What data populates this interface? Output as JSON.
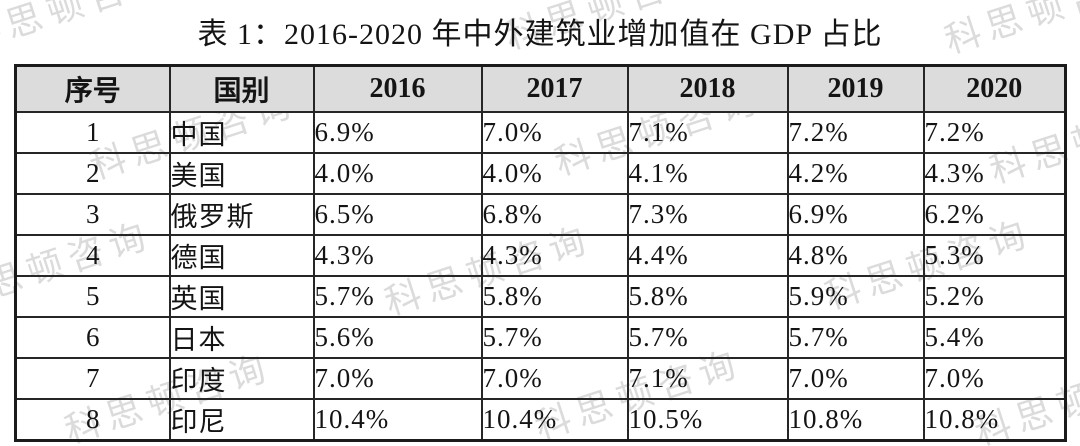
{
  "title": "表 1：2016-2020 年中外建筑业增加值在 GDP 占比",
  "watermark": {
    "text": "科思顿咨询"
  },
  "colors": {
    "background": "#ffffff",
    "header_bg": "#dcdcdc",
    "border": "#262626",
    "text": "#141414",
    "watermark": "#bfbfbf"
  },
  "table": {
    "columns": [
      "序号",
      "国别",
      "2016",
      "2017",
      "2018",
      "2019",
      "2020"
    ],
    "rows": [
      {
        "index": "1",
        "country": "中国",
        "values": [
          "6.9%",
          "7.0%",
          "7.1%",
          "7.2%",
          "7.2%"
        ]
      },
      {
        "index": "2",
        "country": "美国",
        "values": [
          "4.0%",
          "4.0%",
          "4.1%",
          "4.2%",
          "4.3%"
        ]
      },
      {
        "index": "3",
        "country": "俄罗斯",
        "values": [
          "6.5%",
          "6.8%",
          "7.3%",
          "6.9%",
          "6.2%"
        ]
      },
      {
        "index": "4",
        "country": "德国",
        "values": [
          "4.3%",
          "4.3%",
          "4.4%",
          "4.8%",
          "5.3%"
        ]
      },
      {
        "index": "5",
        "country": "英国",
        "values": [
          "5.7%",
          "5.8%",
          "5.8%",
          "5.9%",
          "5.2%"
        ]
      },
      {
        "index": "6",
        "country": "日本",
        "values": [
          "5.6%",
          "5.7%",
          "5.7%",
          "5.7%",
          "5.4%"
        ]
      },
      {
        "index": "7",
        "country": "印度",
        "values": [
          "7.0%",
          "7.0%",
          "7.1%",
          "7.0%",
          "7.0%"
        ]
      },
      {
        "index": "8",
        "country": "印尼",
        "values": [
          "10.4%",
          "10.4%",
          "10.5%",
          "10.8%",
          "10.8%"
        ]
      }
    ]
  }
}
